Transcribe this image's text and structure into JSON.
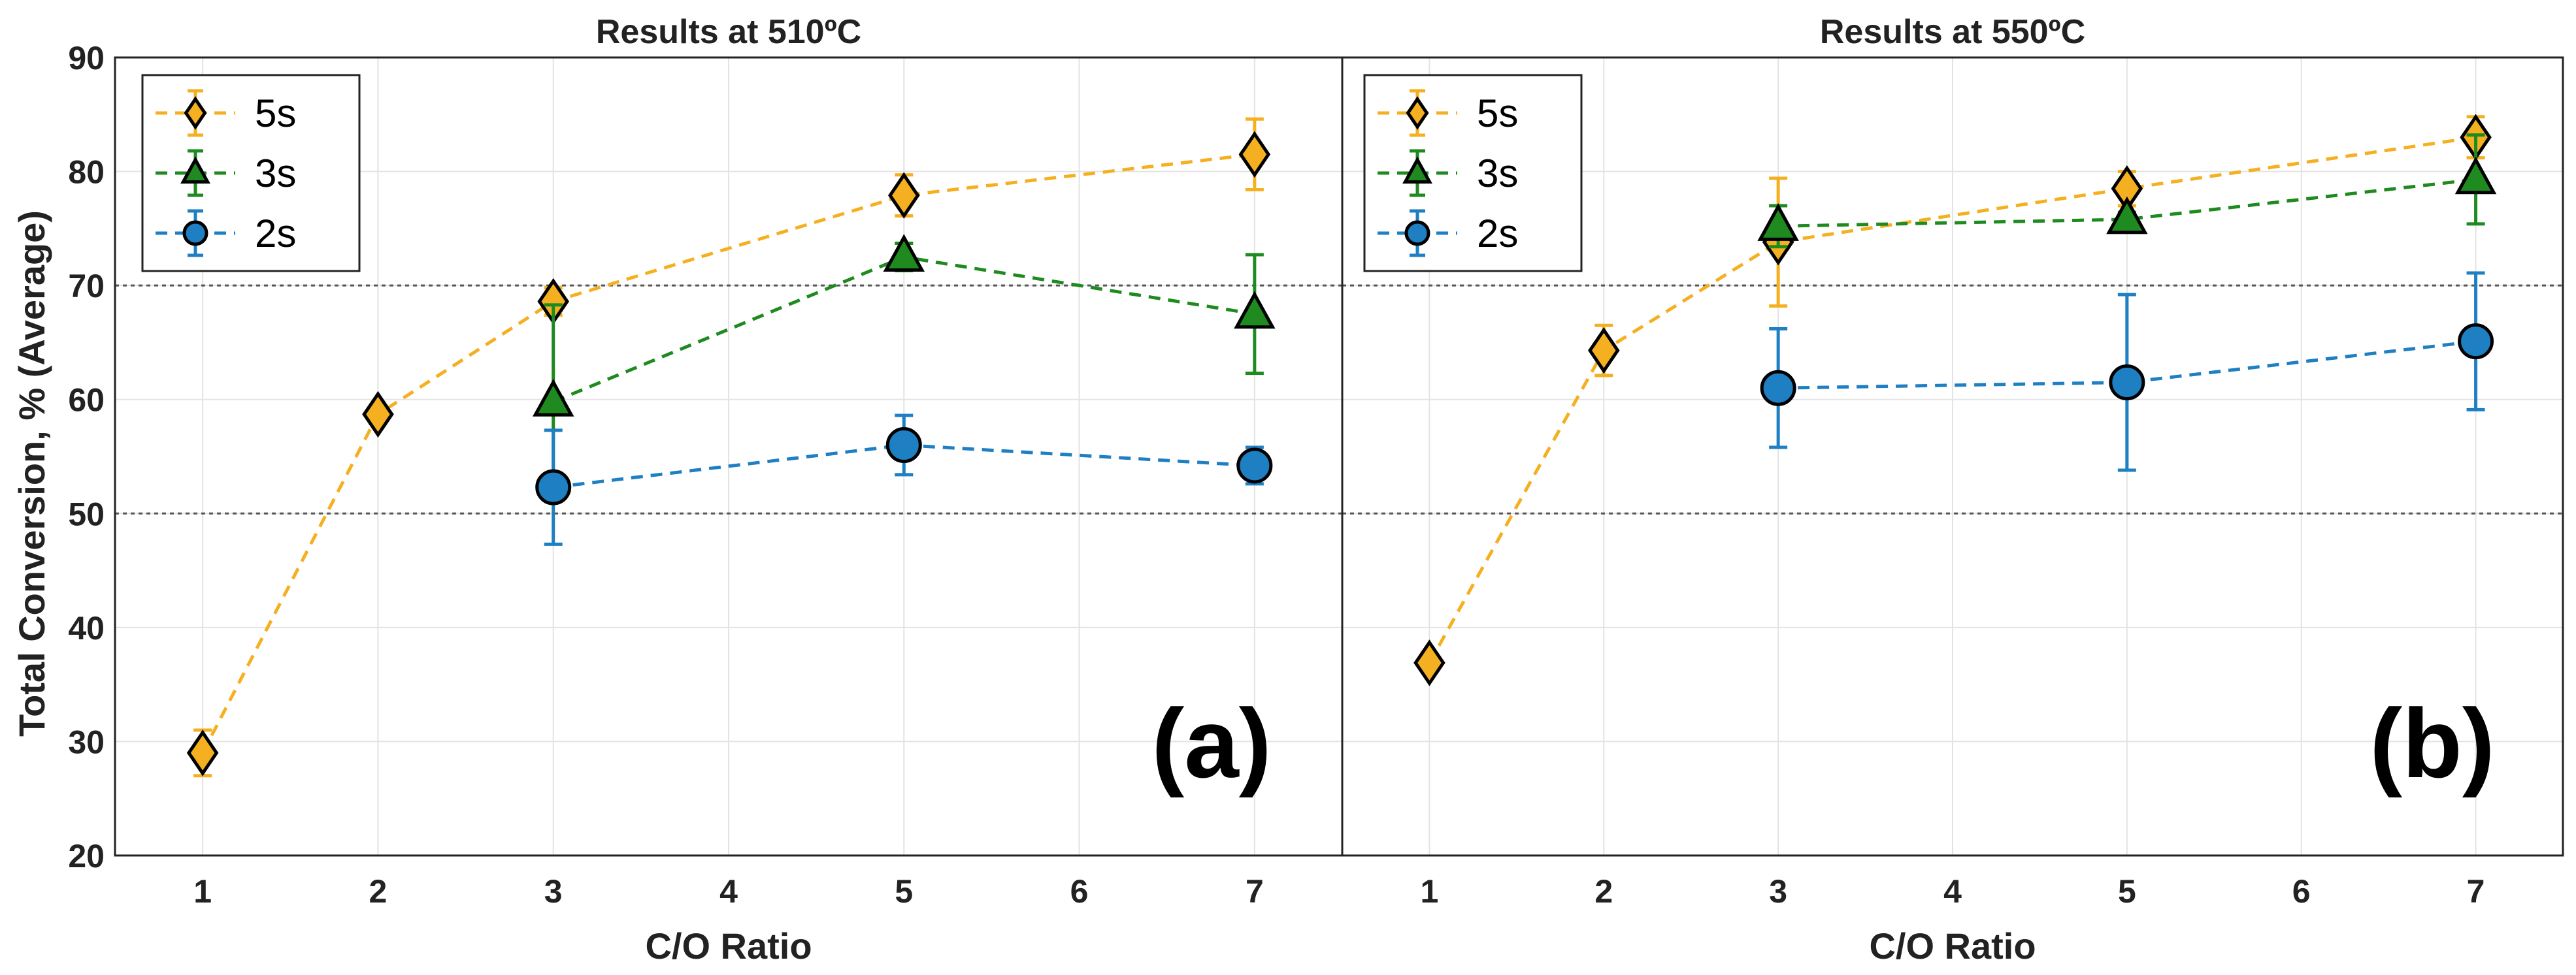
{
  "chart_data": [
    {
      "type": "line",
      "title": "Results at 510ºC",
      "xlabel": "C/O Ratio",
      "ylabel": "Total Conversion, % (Average)",
      "xlim": [
        0.5,
        7.5
      ],
      "ylim": [
        20,
        90
      ],
      "xticks": [
        1,
        2,
        3,
        4,
        5,
        6,
        7
      ],
      "yticks": [
        20,
        30,
        40,
        50,
        60,
        70,
        80,
        90
      ],
      "reference_lines_y": [
        50,
        70
      ],
      "grid": true,
      "legend_position": "top-left",
      "panel_label": "(a)",
      "series": [
        {
          "name": "5s",
          "color": "#f5b021",
          "marker": "diamond",
          "x": [
            1,
            2,
            3,
            5,
            7
          ],
          "y": [
            29,
            58.7,
            68.6,
            77.9,
            81.5
          ],
          "err": [
            2,
            0.8,
            1.2,
            1.8,
            3.1
          ]
        },
        {
          "name": "3s",
          "color": "#1f8a1f",
          "marker": "triangle",
          "x": [
            3,
            5,
            7
          ],
          "y": [
            59.8,
            72.5,
            67.5
          ],
          "err": [
            8.5,
            1.2,
            5.2
          ]
        },
        {
          "name": "2s",
          "color": "#1e7fc2",
          "marker": "circle",
          "x": [
            3,
            5,
            7
          ],
          "y": [
            52.3,
            56,
            54.2
          ],
          "err": [
            5,
            2.6,
            1.6
          ]
        }
      ]
    },
    {
      "type": "line",
      "title": "Results at 550ºC",
      "xlabel": "C/O Ratio",
      "ylabel": "",
      "xlim": [
        0.5,
        7.5
      ],
      "ylim": [
        20,
        90
      ],
      "xticks": [
        1,
        2,
        3,
        4,
        5,
        6,
        7
      ],
      "yticks": [
        20,
        30,
        40,
        50,
        60,
        70,
        80,
        90
      ],
      "reference_lines_y": [
        50,
        70
      ],
      "grid": true,
      "legend_position": "top-left",
      "panel_label": "(b)",
      "series": [
        {
          "name": "5s",
          "color": "#f5b021",
          "marker": "diamond",
          "x": [
            1,
            2,
            3,
            5,
            7
          ],
          "y": [
            36.9,
            64.3,
            73.8,
            78.5,
            83
          ],
          "err": [
            0.6,
            2.2,
            5.6,
            1.5,
            1.8
          ]
        },
        {
          "name": "3s",
          "color": "#1f8a1f",
          "marker": "triangle",
          "x": [
            3,
            5,
            7
          ],
          "y": [
            75.2,
            75.8,
            79.3
          ],
          "err": [
            1.8,
            0.6,
            3.9
          ]
        },
        {
          "name": "2s",
          "color": "#1e7fc2",
          "marker": "circle",
          "x": [
            3,
            5,
            7
          ],
          "y": [
            61,
            61.5,
            65.1
          ],
          "err": [
            5.2,
            7.7,
            6
          ]
        }
      ]
    }
  ]
}
